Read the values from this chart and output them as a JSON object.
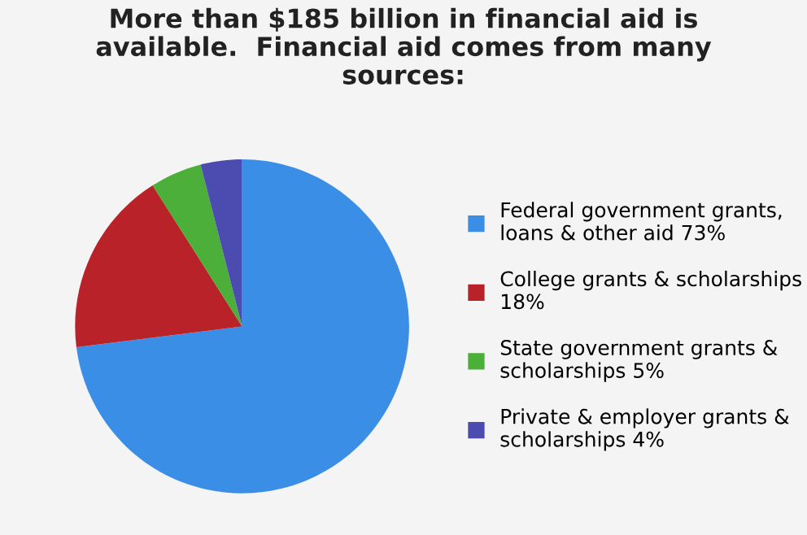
{
  "chart_data": {
    "type": "pie",
    "title": "More than $185 billion in financial aid is\navailable.  Financial aid comes from many\nsources:",
    "categories": [
      "Federal government grants,\nloans & other aid 73%",
      "College grants & scholarships\n18%",
      "State government grants &\nscholarships 5%",
      "Private & employer grants &\nscholarships 4%"
    ],
    "values": [
      73,
      18,
      5,
      4
    ],
    "colors": [
      "#3a8ee6",
      "#b82228",
      "#4caf3a",
      "#4b4bb0"
    ],
    "legend": "right"
  }
}
